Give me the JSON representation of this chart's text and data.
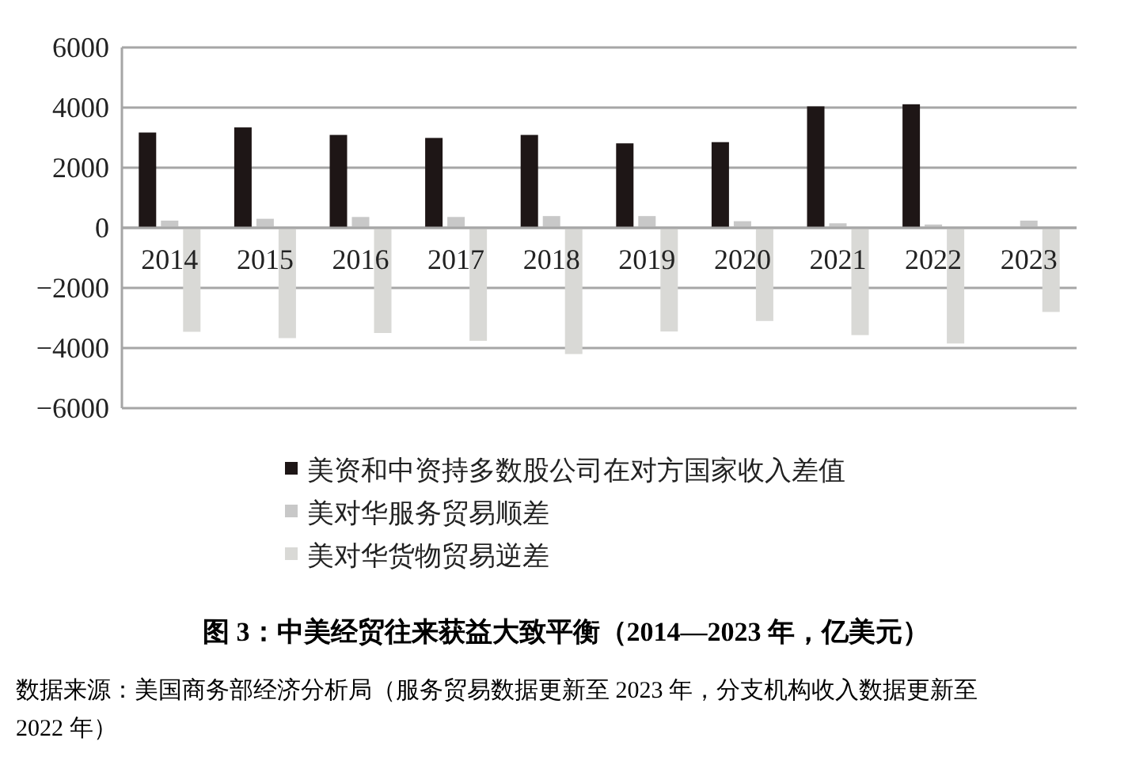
{
  "chart_data": {
    "type": "bar",
    "title": "图 3：中美经贸往来获益大致平衡（2014—2023 年，亿美元）",
    "annotations": [
      "数据来源：美国商务部经济分析局（服务贸易数据更新至 2023 年，分支机构收入数据更新至 2022 年）"
    ],
    "categories": [
      "2014",
      "2015",
      "2016",
      "2017",
      "2018",
      "2019",
      "2020",
      "2021",
      "2022",
      "2023"
    ],
    "series": [
      {
        "name": "美资和中资持多数股公司在对方国家收入差值",
        "color": "#1e1616",
        "values": [
          3170,
          3340,
          3090,
          2990,
          3090,
          2810,
          2850,
          4040,
          4110,
          null
        ]
      },
      {
        "name": "美对华服务贸易顺差",
        "color": "#c8c8c8",
        "values": [
          240,
          300,
          360,
          360,
          390,
          390,
          220,
          150,
          110,
          240
        ]
      },
      {
        "name": "美对华货物贸易逆差",
        "color": "#d9d9d6",
        "values": [
          -3460,
          -3670,
          -3500,
          -3760,
          -4200,
          -3450,
          -3100,
          -3570,
          -3850,
          -2800
        ]
      }
    ],
    "ylim": [
      -6000,
      6000
    ],
    "yticks": [
      -6000,
      -4000,
      -2000,
      0,
      2000,
      4000,
      6000
    ],
    "grid": "y",
    "legend": "bottom"
  }
}
